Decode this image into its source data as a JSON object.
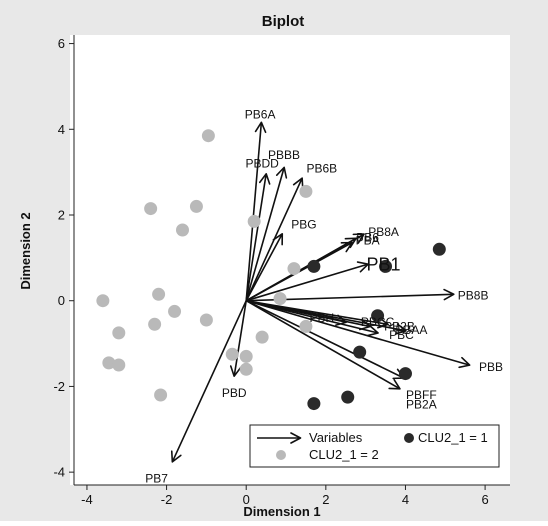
{
  "chart_data": {
    "type": "scatter",
    "title": "Biplot",
    "xlabel": "Dimension 1",
    "ylabel": "Dimension 2",
    "xlim": [
      -4.3,
      6.5
    ],
    "ylim": [
      -4.3,
      6.2
    ],
    "xticks": [
      -4,
      -2,
      0,
      2,
      4,
      6
    ],
    "yticks": [
      -4,
      -2,
      0,
      2,
      4,
      6
    ],
    "grid": false,
    "legend_position": "bottom-right",
    "colors": {
      "outer_background": "#e8e8e8",
      "plot_background": "#ffffff",
      "arrow": "#111111",
      "cluster1": "#2a2a2a",
      "cluster2": "#b9b9b9"
    },
    "legend": [
      {
        "label": "Variables",
        "kind": "arrow"
      },
      {
        "label": "CLU2_1 = 1",
        "kind": "dot",
        "color": "#2a2a2a"
      },
      {
        "label": "CLU2_1 = 2",
        "kind": "dot",
        "color": "#b9b9b9"
      }
    ],
    "variables": [
      {
        "name": "PB6A",
        "x": 0.38,
        "y": 4.15,
        "label_x": 0.35,
        "label_y": 4.35
      },
      {
        "name": "PBDD",
        "x": 0.5,
        "y": 2.95,
        "label_x": 0.4,
        "label_y": 3.2
      },
      {
        "name": "PBBB",
        "x": 0.95,
        "y": 3.1,
        "label_x": 0.95,
        "label_y": 3.4
      },
      {
        "name": "PB6B",
        "x": 1.4,
        "y": 2.85,
        "label_x": 1.9,
        "label_y": 3.08
      },
      {
        "name": "PBG",
        "x": 0.9,
        "y": 1.55,
        "label_x": 1.45,
        "label_y": 1.78
      },
      {
        "name": "PB8A",
        "x": 2.95,
        "y": 1.55,
        "label_x": 3.45,
        "label_y": 1.6
      },
      {
        "name": "PBA",
        "x": 2.75,
        "y": 1.45,
        "label_x": 3.05,
        "label_y": 1.4
      },
      {
        "name": "PB6",
        "x": 2.65,
        "y": 1.35,
        "label_x": 3.05,
        "label_y": 1.48
      },
      {
        "name": "PB1",
        "x": 3.05,
        "y": 0.85,
        "label_x": 3.45,
        "label_y": 0.8,
        "large_label": true
      },
      {
        "name": "PB8B",
        "x": 5.2,
        "y": 0.15,
        "label_x": 5.7,
        "label_y": 0.12
      },
      {
        "name": "PBH",
        "x": 2.5,
        "y": -0.5,
        "label_x": 1.9,
        "label_y": -0.4
      },
      {
        "name": "PBCC",
        "x": 3.1,
        "y": -0.6,
        "label_x": 3.3,
        "label_y": -0.5
      },
      {
        "name": "PBC",
        "x": 3.3,
        "y": -0.75,
        "label_x": 3.9,
        "label_y": -0.8
      },
      {
        "name": "PB2B",
        "x": 3.55,
        "y": -0.55,
        "label_x": 3.85,
        "label_y": -0.6
      },
      {
        "name": "PBAA",
        "x": 4.0,
        "y": -0.7,
        "label_x": 4.15,
        "label_y": -0.68
      },
      {
        "name": "PBB",
        "x": 5.6,
        "y": -1.5,
        "label_x": 6.15,
        "label_y": -1.55
      },
      {
        "name": "PBFF",
        "x": 3.95,
        "y": -1.8,
        "label_x": 4.4,
        "label_y": -2.2
      },
      {
        "name": "PB2A",
        "x": 3.85,
        "y": -2.05,
        "label_x": 4.4,
        "label_y": -2.42
      },
      {
        "name": "PBD",
        "x": -0.3,
        "y": -1.75,
        "label_x": -0.3,
        "label_y": -2.15
      },
      {
        "name": "PB7",
        "x": -1.85,
        "y": -3.75,
        "label_x": -2.25,
        "label_y": -4.15
      }
    ],
    "series": [
      {
        "name": "CLU2_1 = 1",
        "points": [
          [
            1.7,
            0.8
          ],
          [
            3.5,
            0.8
          ],
          [
            4.85,
            1.2
          ],
          [
            3.3,
            -0.35
          ],
          [
            2.85,
            -1.2
          ],
          [
            4.0,
            -1.7
          ],
          [
            1.7,
            -2.4
          ],
          [
            2.55,
            -2.25
          ]
        ]
      },
      {
        "name": "CLU2_1 = 2",
        "points": [
          [
            -0.95,
            3.85
          ],
          [
            -2.4,
            2.15
          ],
          [
            -1.25,
            2.2
          ],
          [
            -1.6,
            1.65
          ],
          [
            -3.6,
            0.0
          ],
          [
            -3.2,
            -0.75
          ],
          [
            -2.2,
            0.15
          ],
          [
            -2.3,
            -0.55
          ],
          [
            -1.8,
            -0.25
          ],
          [
            -1.0,
            -0.45
          ],
          [
            -3.45,
            -1.45
          ],
          [
            -3.2,
            -1.5
          ],
          [
            -2.15,
            -2.2
          ],
          [
            -0.35,
            -1.25
          ],
          [
            0.0,
            -1.3
          ],
          [
            0.0,
            -1.6
          ],
          [
            0.4,
            -0.85
          ],
          [
            0.2,
            1.85
          ],
          [
            1.5,
            2.55
          ],
          [
            1.2,
            0.75
          ],
          [
            0.85,
            0.05
          ],
          [
            1.5,
            -0.6
          ]
        ]
      }
    ]
  }
}
